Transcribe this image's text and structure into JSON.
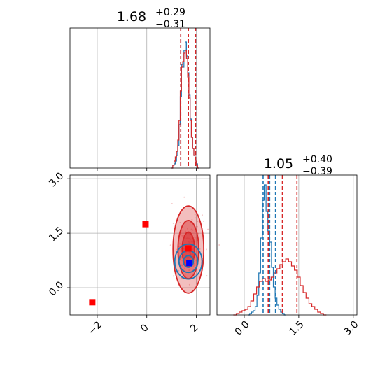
{
  "chart_data": [
    {
      "type": "histogram",
      "panel": "top-left",
      "title_main": "1.68",
      "title_sup": "+0.29",
      "title_sub": "−0.31",
      "xlim": [
        -3.1,
        2.55
      ],
      "ymax": 1.0,
      "grid": true,
      "x_tick_values": [
        -2,
        0,
        2
      ],
      "series": [
        {
          "color": "#1f77b4",
          "bin_edges_from": 1.0,
          "bin_width": 0.05,
          "heights": [
            0.0,
            0.02,
            0.03,
            0.05,
            0.09,
            0.16,
            0.31,
            0.51,
            0.74,
            0.72,
            0.84,
            0.9,
            0.8,
            0.68,
            0.52,
            0.35,
            0.22,
            0.14,
            0.09,
            0.05,
            0.03,
            0.0
          ],
          "quantile_lines": [
            1.37,
            1.68,
            1.97
          ]
        },
        {
          "color": "#d62728",
          "bin_edges_from": 1.0,
          "bin_width": 0.05,
          "heights": [
            0.0,
            0.02,
            0.05,
            0.08,
            0.12,
            0.2,
            0.34,
            0.55,
            0.72,
            0.76,
            0.82,
            0.84,
            0.78,
            0.65,
            0.5,
            0.34,
            0.22,
            0.14,
            0.09,
            0.05,
            0.02,
            0.0
          ],
          "quantile_lines": [
            1.37,
            1.68,
            1.97
          ]
        }
      ]
    },
    {
      "type": "scatter",
      "panel": "bottom-left",
      "xlim": [
        -3.1,
        2.55
      ],
      "ylim": [
        -0.75,
        3.1
      ],
      "grid": true,
      "x_tick_values": [
        -2,
        0,
        2
      ],
      "x_tick_labels": [
        "−2",
        "0",
        "2"
      ],
      "y_tick_values": [
        0.0,
        1.5,
        3.0
      ],
      "y_tick_labels": [
        "0.0",
        "1.5",
        "3.0"
      ],
      "contours": [
        {
          "color": "#d62728",
          "cx": 1.68,
          "cy": 1.05,
          "levels": [
            [
              0.62,
              1.2,
              "0.3"
            ],
            [
              0.42,
              0.8,
              "0.45"
            ],
            [
              0.25,
              0.48,
              "0.55"
            ]
          ]
        },
        {
          "color": "#1f77b4",
          "cx": 1.68,
          "cy": 0.72,
          "levels": [
            [
              0.55,
              0.48,
              "0"
            ],
            [
              0.38,
              0.3,
              "0"
            ],
            [
              0.2,
              0.16,
              "0"
            ]
          ]
        }
      ],
      "markers": [
        {
          "x": -2.2,
          "y": -0.4,
          "color": "#ff0000"
        },
        {
          "x": -0.05,
          "y": 1.75,
          "color": "#ff0000"
        },
        {
          "x": 1.68,
          "y": 1.08,
          "color": "#ff0000"
        },
        {
          "x": 1.72,
          "y": 0.68,
          "color": "#0000ff"
        }
      ]
    },
    {
      "type": "histogram",
      "panel": "bottom-right",
      "title_main": "1.05",
      "title_sup": "+0.40",
      "title_sub": "−0.39",
      "xlim": [
        -0.75,
        3.1
      ],
      "ymax": 1.0,
      "grid": true,
      "x_tick_values": [
        0.0,
        1.5,
        3.0
      ],
      "x_tick_labels": [
        "0.0",
        "1.5",
        "3.0"
      ],
      "series": [
        {
          "color": "#1f77b4",
          "bin_edges_from": 0.1,
          "bin_width": 0.05,
          "heights": [
            0.0,
            0.01,
            0.02,
            0.03,
            0.06,
            0.14,
            0.3,
            0.55,
            0.82,
            0.93,
            0.74,
            0.6,
            0.52,
            0.34,
            0.2,
            0.12,
            0.07,
            0.04,
            0.02,
            0.01,
            0.0
          ],
          "quantile_lines": [
            0.52,
            0.7,
            0.86
          ]
        },
        {
          "color": "#d62728",
          "bin_edges_from": -0.3,
          "bin_width": 0.08,
          "heights": [
            0.0,
            0.01,
            0.02,
            0.03,
            0.04,
            0.06,
            0.1,
            0.15,
            0.2,
            0.24,
            0.26,
            0.24,
            0.25,
            0.27,
            0.3,
            0.33,
            0.36,
            0.38,
            0.4,
            0.38,
            0.35,
            0.32,
            0.27,
            0.21,
            0.16,
            0.12,
            0.08,
            0.06,
            0.04,
            0.02,
            0.01,
            0.0
          ],
          "quantile_lines": [
            0.66,
            1.05,
            1.45
          ]
        }
      ]
    }
  ]
}
